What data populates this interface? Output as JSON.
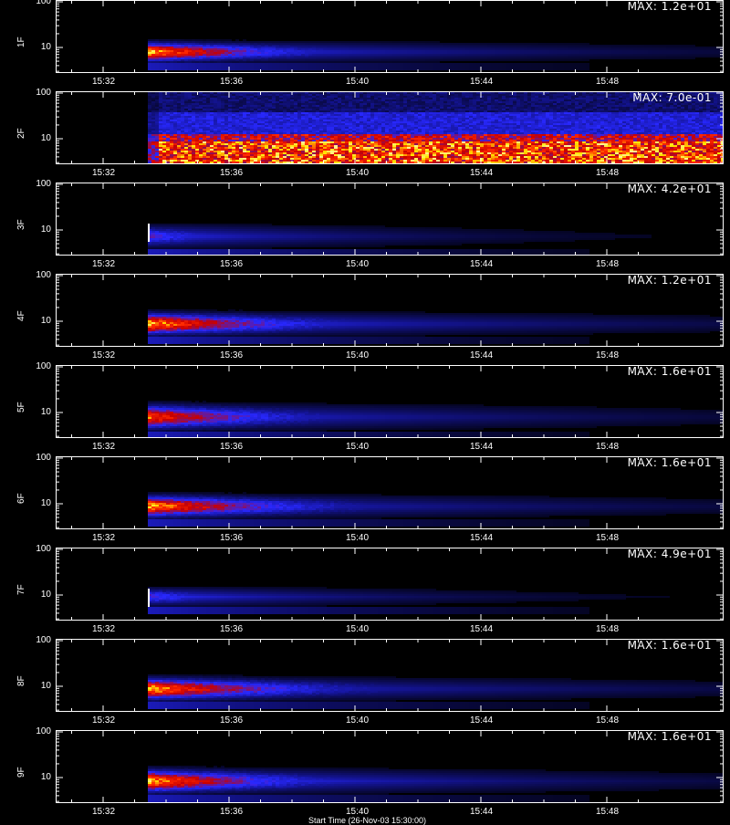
{
  "chart_data": {
    "type": "heatmap",
    "x_ticks": [
      "15:32",
      "15:36",
      "15:40",
      "15:44",
      "15:48"
    ],
    "y_ticks": [
      "100",
      "10"
    ],
    "y_scale": "log",
    "colormap": "black-blue-red-yellow-white",
    "panels": [
      {
        "label": "1F",
        "max_label": "MAX: 1.2e+01"
      },
      {
        "label": "2F",
        "max_label": "MAX: 7.0e-01"
      },
      {
        "label": "3F",
        "max_label": "MAX: 4.2e+01"
      },
      {
        "label": "4F",
        "max_label": "MAX: 1.2e+01"
      },
      {
        "label": "5F",
        "max_label": "MAX: 1.6e+01"
      },
      {
        "label": "6F",
        "max_label": "MAX: 1.6e+01"
      },
      {
        "label": "7F",
        "max_label": "MAX: 4.9e+01"
      },
      {
        "label": "8F",
        "max_label": "MAX: 1.6e+01"
      },
      {
        "label": "9F",
        "max_label": "MAX: 1.6e+01"
      }
    ]
  },
  "x_axis_title": "Start Time (26-Nov-03 15:30:00)"
}
